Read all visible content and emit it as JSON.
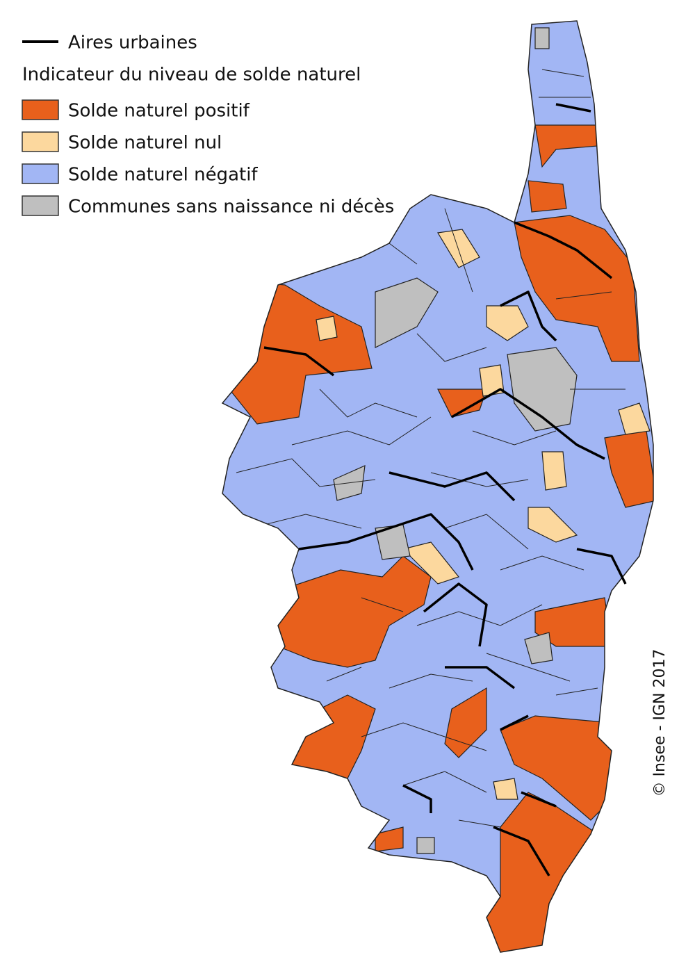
{
  "legend": {
    "urban_areas": "Aires urbaines",
    "title": "Indicateur du niveau de solde naturel",
    "items": [
      {
        "label": "Solde naturel positif",
        "color": "#e8601c"
      },
      {
        "label": "Solde naturel nul",
        "color": "#fcd89e"
      },
      {
        "label": "Solde naturel négatif",
        "color": "#a2b6f4"
      },
      {
        "label": "Communes sans naissance ni décès",
        "color": "#bfbfbf"
      }
    ]
  },
  "credit": "© Insee - IGN 2017"
}
